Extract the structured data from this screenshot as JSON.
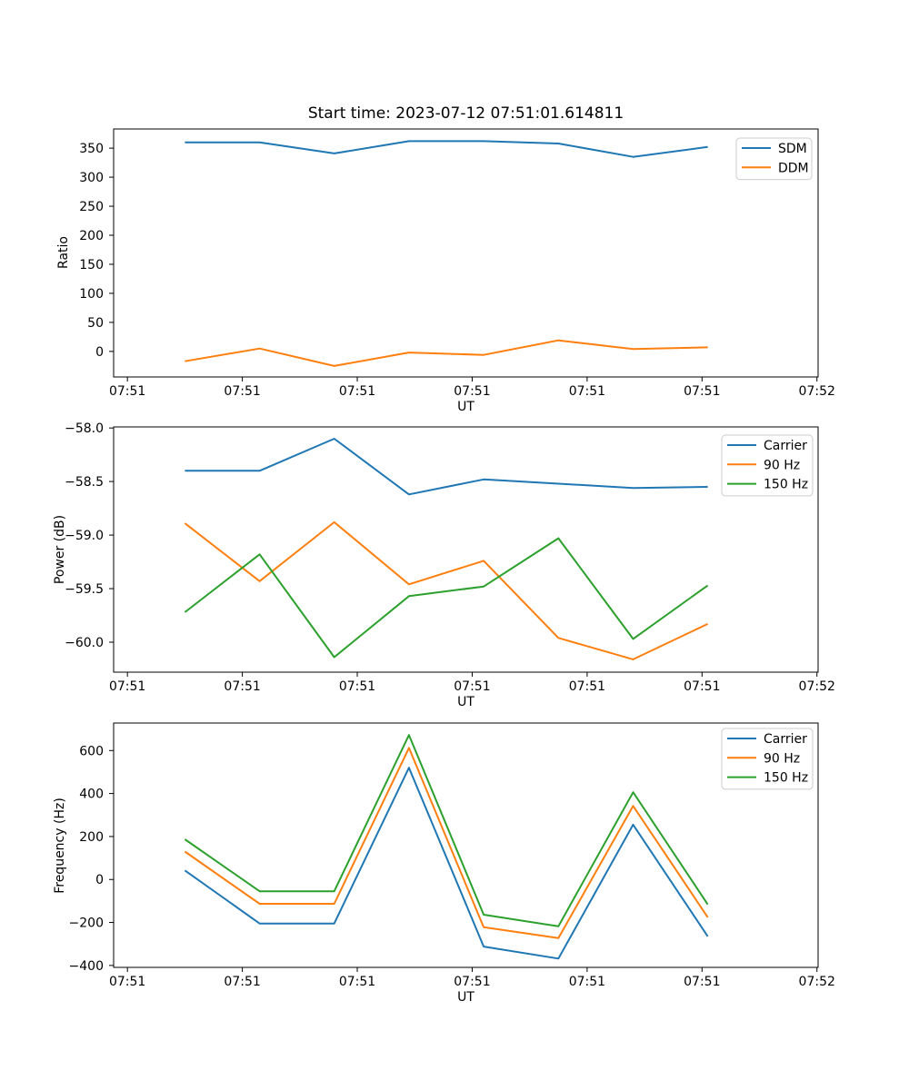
{
  "figure": {
    "title": "Start time: 2023-07-12 07:51:01.614811",
    "background_color": "#ffffff",
    "spine_color": "#000000",
    "legend_border_color": "#cccccc"
  },
  "chart_data": [
    {
      "id": "ratio-plot",
      "type": "line",
      "title": "",
      "ylabel": "Ratio",
      "xlabel": "UT",
      "x_unit": "seconds after 07:51:00 UT",
      "x": [
        5.0,
        11.5,
        18.0,
        24.5,
        31.0,
        37.5,
        44.0,
        50.5
      ],
      "xlim": [
        -1.2,
        60.1
      ],
      "ylim": [
        -44,
        383
      ],
      "grid": false,
      "legend_position": "upper right",
      "xticks": {
        "positions": [
          0,
          10,
          20,
          30,
          40,
          50,
          60
        ],
        "labels": [
          "07:51",
          "07:51",
          "07:51",
          "07:51",
          "07:51",
          "07:51",
          "07:52"
        ]
      },
      "yticks": {
        "positions": [
          0,
          50,
          100,
          150,
          200,
          250,
          300,
          350
        ],
        "labels": [
          "0",
          "50",
          "100",
          "150",
          "200",
          "250",
          "300",
          "350"
        ]
      },
      "series": [
        {
          "name": "SDM",
          "color": "#1f77b4",
          "values": [
            360,
            360,
            341,
            362,
            362,
            358,
            335,
            352
          ]
        },
        {
          "name": "DDM",
          "color": "#ff7f0e",
          "values": [
            -17,
            5,
            -25,
            -2,
            -6,
            19,
            4,
            7
          ]
        }
      ]
    },
    {
      "id": "power-plot",
      "type": "line",
      "title": "",
      "ylabel": "Power (dB)",
      "xlabel": "UT",
      "x_unit": "seconds after 07:51:00 UT",
      "x": [
        5.0,
        11.5,
        18.0,
        24.5,
        31.0,
        37.5,
        44.0,
        50.5
      ],
      "xlim": [
        -1.2,
        60.1
      ],
      "ylim": [
        -60.28,
        -57.99
      ],
      "grid": false,
      "legend_position": "upper right",
      "xticks": {
        "positions": [
          0,
          10,
          20,
          30,
          40,
          50,
          60
        ],
        "labels": [
          "07:51",
          "07:51",
          "07:51",
          "07:51",
          "07:51",
          "07:51",
          "07:52"
        ]
      },
      "yticks": {
        "positions": [
          -58.0,
          -58.5,
          -59.0,
          -59.5,
          -60.0
        ],
        "labels": [
          "−58.0",
          "−58.5",
          "−59.0",
          "−59.5",
          "−60.0"
        ]
      },
      "series": [
        {
          "name": "Carrier",
          "color": "#1f77b4",
          "values": [
            -58.4,
            -58.4,
            -58.1,
            -58.62,
            -58.48,
            -58.52,
            -58.56,
            -58.55
          ]
        },
        {
          "name": "90 Hz",
          "color": "#ff7f0e",
          "values": [
            -58.89,
            -59.43,
            -58.88,
            -59.46,
            -59.24,
            -59.96,
            -60.16,
            -59.83
          ]
        },
        {
          "name": "150 Hz",
          "color": "#2ca02c",
          "values": [
            -59.72,
            -59.18,
            -60.14,
            -59.57,
            -59.48,
            -59.03,
            -59.97,
            -59.47
          ]
        }
      ]
    },
    {
      "id": "frequency-plot",
      "type": "line",
      "title": "",
      "ylabel": "Frequency (Hz)",
      "xlabel": "UT",
      "x_unit": "seconds after 07:51:00 UT",
      "x": [
        5.0,
        11.5,
        18.0,
        24.5,
        31.0,
        37.5,
        44.0,
        50.5
      ],
      "xlim": [
        -1.2,
        60.1
      ],
      "ylim": [
        -409,
        728
      ],
      "grid": false,
      "legend_position": "upper right",
      "xticks": {
        "positions": [
          0,
          10,
          20,
          30,
          40,
          50,
          60
        ],
        "labels": [
          "07:51",
          "07:51",
          "07:51",
          "07:51",
          "07:51",
          "07:51",
          "07:52"
        ]
      },
      "yticks": {
        "positions": [
          600,
          400,
          200,
          0,
          -200,
          -400
        ],
        "labels": [
          "600",
          "400",
          "200",
          "0",
          "−200",
          "−400"
        ]
      },
      "series": [
        {
          "name": "Carrier",
          "color": "#1f77b4",
          "values": [
            42,
            -205,
            -205,
            520,
            -312,
            -368,
            255,
            -265
          ]
        },
        {
          "name": "90 Hz",
          "color": "#ff7f0e",
          "values": [
            130,
            -113,
            -113,
            612,
            -222,
            -273,
            342,
            -176
          ]
        },
        {
          "name": "150 Hz",
          "color": "#2ca02c",
          "values": [
            187,
            -55,
            -55,
            672,
            -164,
            -218,
            406,
            -116
          ]
        }
      ]
    }
  ]
}
